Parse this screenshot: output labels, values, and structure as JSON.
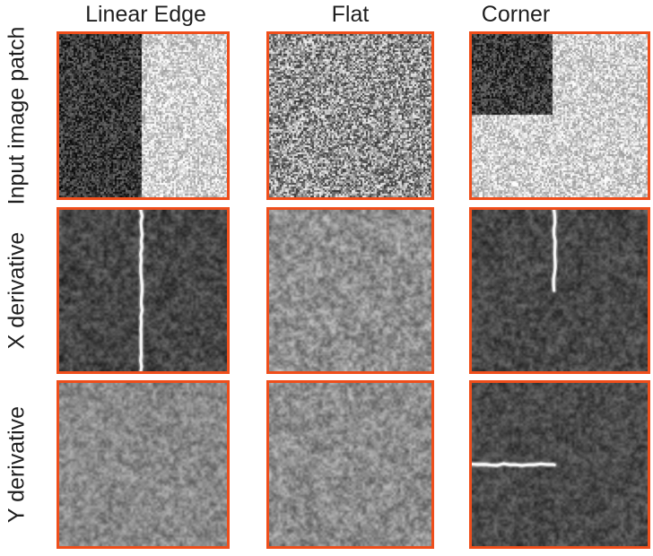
{
  "figure": {
    "columns": [
      {
        "label": "Linear Edge"
      },
      {
        "label": "Flat"
      },
      {
        "label": "Corner"
      }
    ],
    "rows": [
      {
        "label": "Input image patch"
      },
      {
        "label": "X derivative"
      },
      {
        "label": "Y derivative"
      }
    ],
    "colors": {
      "patch_border": "#EF4E1B",
      "label_text": "#1F1F1F",
      "background": "#FFFFFF",
      "feature_line": "#FAFAFA"
    },
    "patches": [
      {
        "name": "input-linear-edge",
        "row": "Input image patch",
        "column": "Linear Edge",
        "description": "high-frequency noise, dark left half / light right half vertical split",
        "render": "speckle",
        "regions": "vsplit",
        "split": 0.485,
        "dark": 58,
        "light": 211,
        "amp": 112,
        "cell": 2,
        "seed": 11
      },
      {
        "name": "input-flat",
        "row": "Input image patch",
        "column": "Flat",
        "description": "uniform mid-gray high-frequency noise",
        "render": "speckle",
        "regions": "flat",
        "base": 148,
        "amp": 200,
        "cell": 2,
        "seed": 22
      },
      {
        "name": "input-corner",
        "row": "Input image patch",
        "column": "Corner",
        "description": "light noise with dark square in top-left corner",
        "render": "speckle",
        "regions": "corner",
        "cw": 0.45,
        "ch": 0.49,
        "dark": 60,
        "light": 208,
        "amp": 110,
        "cell": 2,
        "seed": 33
      },
      {
        "name": "xderiv-linear-edge",
        "row": "X derivative",
        "column": "Linear Edge",
        "description": "dark smoothed noise with bright full-height vertical line at center",
        "render": "blobs",
        "base": 72,
        "amp": 95,
        "scale": 5,
        "seed": 44,
        "line": {
          "dir": "v",
          "pos": 0.49,
          "from": 0,
          "to": 1
        }
      },
      {
        "name": "xderiv-flat",
        "row": "X derivative",
        "column": "Flat",
        "description": "mid-gray smoothed blobby noise, no structure",
        "render": "blobs",
        "base": 144,
        "amp": 125,
        "scale": 5,
        "seed": 55
      },
      {
        "name": "xderiv-corner",
        "row": "X derivative",
        "column": "Corner",
        "description": "dark smoothed noise with bright vertical line from top to middle",
        "render": "blobs",
        "base": 74,
        "amp": 90,
        "scale": 5,
        "seed": 66,
        "line": {
          "dir": "v",
          "pos": 0.47,
          "from": 0,
          "to": 0.5
        }
      },
      {
        "name": "yderiv-linear-edge",
        "row": "Y derivative",
        "column": "Linear Edge",
        "description": "mid-gray smoothed blobby noise, no structure",
        "render": "blobs",
        "base": 138,
        "amp": 105,
        "scale": 5,
        "seed": 77
      },
      {
        "name": "yderiv-flat",
        "row": "Y derivative",
        "column": "Flat",
        "description": "mid-gray smoothed blobby noise, no structure",
        "render": "blobs",
        "base": 142,
        "amp": 118,
        "scale": 5,
        "seed": 88
      },
      {
        "name": "yderiv-corner",
        "row": "Y derivative",
        "column": "Corner",
        "description": "dark smoothed noise with bright horizontal line from left edge to middle",
        "render": "blobs",
        "base": 76,
        "amp": 88,
        "scale": 5,
        "seed": 99,
        "line": {
          "dir": "h",
          "pos": 0.5,
          "from": 0,
          "to": 0.47
        }
      }
    ]
  }
}
